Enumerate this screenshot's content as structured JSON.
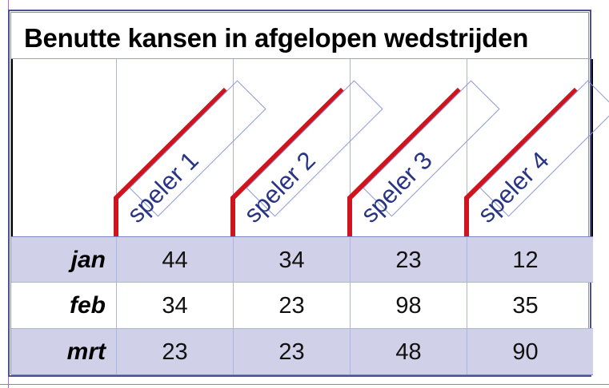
{
  "table": {
    "title": "Benutte kansen in afgelopen wedstrijden",
    "players": [
      "speler 1",
      "speler 2",
      "speler 3",
      "speler 4"
    ],
    "rows": [
      {
        "label": "jan",
        "values": [
          "44",
          "34",
          "23",
          "12"
        ]
      },
      {
        "label": "feb",
        "values": [
          "34",
          "23",
          "98",
          "35"
        ]
      },
      {
        "label": "mrt",
        "values": [
          "23",
          "23",
          "48",
          "90"
        ]
      }
    ]
  },
  "colors": {
    "header_accent": "#d0141e",
    "label_text": "#283484",
    "row_shade": "#d0d0e8",
    "frame": "#4a4f9c"
  }
}
